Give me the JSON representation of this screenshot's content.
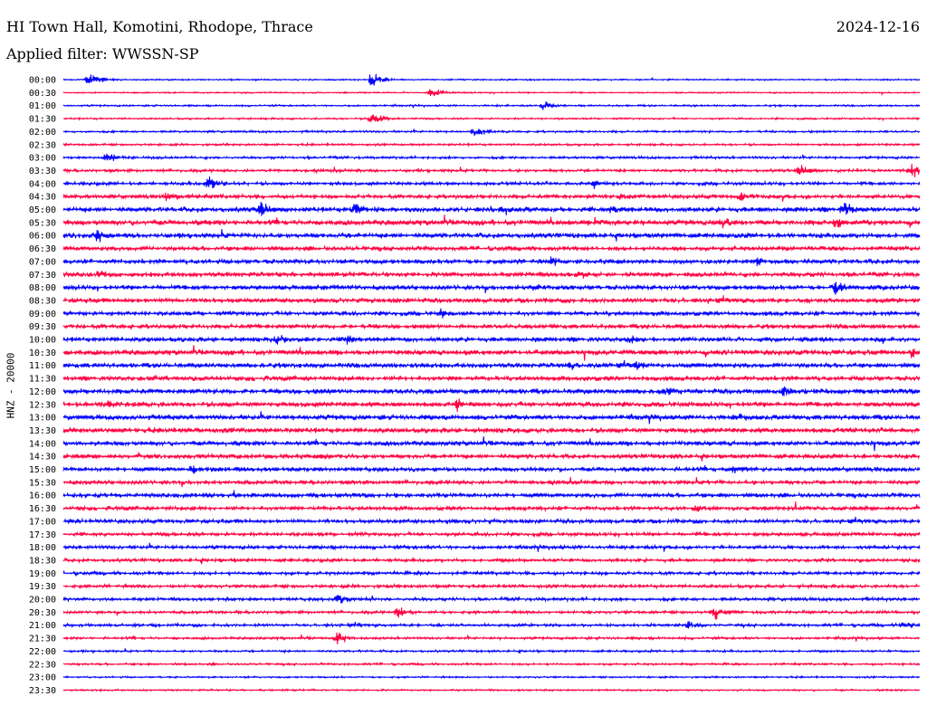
{
  "header": {
    "station": "HI Town Hall, Komotini, Rhodope, Thrace",
    "date": "2024-12-16",
    "filter": "Applied filter: WWSSN-SP"
  },
  "chart_data": {
    "type": "line",
    "title": "HI Town Hall, Komotini, Rhodope, Thrace",
    "ylabel": "HNZ - 20000",
    "xlabel": "",
    "row_labels": [
      "00:00",
      "00:30",
      "01:00",
      "01:30",
      "02:00",
      "02:30",
      "03:00",
      "03:30",
      "04:00",
      "04:30",
      "05:00",
      "05:30",
      "06:00",
      "06:30",
      "07:00",
      "07:30",
      "08:00",
      "08:30",
      "09:00",
      "09:30",
      "10:00",
      "10:30",
      "11:00",
      "11:30",
      "12:00",
      "12:30",
      "13:00",
      "13:30",
      "14:00",
      "14:30",
      "15:00",
      "15:30",
      "16:00",
      "16:30",
      "17:00",
      "17:30",
      "18:00",
      "18:30",
      "19:00",
      "19:30",
      "20:00",
      "20:30",
      "21:00",
      "21:30",
      "22:00",
      "22:30",
      "23:00",
      "23:30"
    ],
    "trace_colors": [
      "#0000ff",
      "#ff0040"
    ],
    "noise_level": [
      0.2,
      0.2,
      0.25,
      0.25,
      0.3,
      0.3,
      0.35,
      0.4,
      0.45,
      0.55,
      0.7,
      0.75,
      0.7,
      0.6,
      0.65,
      0.65,
      0.65,
      0.65,
      0.6,
      0.6,
      0.65,
      0.7,
      0.65,
      0.65,
      0.7,
      0.7,
      0.7,
      0.7,
      0.65,
      0.6,
      0.6,
      0.55,
      0.6,
      0.55,
      0.55,
      0.5,
      0.5,
      0.45,
      0.45,
      0.45,
      0.45,
      0.4,
      0.4,
      0.35,
      0.3,
      0.3,
      0.25,
      0.25
    ],
    "events": [
      {
        "row": 0,
        "pos": 0.03,
        "amp": 10
      },
      {
        "row": 0,
        "pos": 0.36,
        "amp": 9
      },
      {
        "row": 1,
        "pos": 0.43,
        "amp": 7
      },
      {
        "row": 2,
        "pos": 0.56,
        "amp": 6
      },
      {
        "row": 3,
        "pos": 0.36,
        "amp": 8
      },
      {
        "row": 4,
        "pos": 0.48,
        "amp": 8
      },
      {
        "row": 6,
        "pos": 0.05,
        "amp": 7
      },
      {
        "row": 7,
        "pos": 0.86,
        "amp": 8
      },
      {
        "row": 7,
        "pos": 0.99,
        "amp": 12
      },
      {
        "row": 8,
        "pos": 0.17,
        "amp": 10
      },
      {
        "row": 8,
        "pos": 0.62,
        "amp": 6
      },
      {
        "row": 9,
        "pos": 0.12,
        "amp": 6
      },
      {
        "row": 9,
        "pos": 0.65,
        "amp": 7
      },
      {
        "row": 9,
        "pos": 0.79,
        "amp": 7
      },
      {
        "row": 10,
        "pos": 0.23,
        "amp": 11
      },
      {
        "row": 10,
        "pos": 0.34,
        "amp": 9
      },
      {
        "row": 10,
        "pos": 0.64,
        "amp": 9
      },
      {
        "row": 10,
        "pos": 0.91,
        "amp": 12
      },
      {
        "row": 11,
        "pos": 0.62,
        "amp": 9
      },
      {
        "row": 11,
        "pos": 0.77,
        "amp": 9
      },
      {
        "row": 11,
        "pos": 0.9,
        "amp": 10
      },
      {
        "row": 12,
        "pos": 0.04,
        "amp": 9
      },
      {
        "row": 14,
        "pos": 0.57,
        "amp": 7
      },
      {
        "row": 14,
        "pos": 0.81,
        "amp": 7
      },
      {
        "row": 15,
        "pos": 0.04,
        "amp": 7
      },
      {
        "row": 15,
        "pos": 0.6,
        "amp": 6
      },
      {
        "row": 16,
        "pos": 0.9,
        "amp": 10
      },
      {
        "row": 16,
        "pos": 0.55,
        "amp": 6
      },
      {
        "row": 18,
        "pos": 0.44,
        "amp": 7
      },
      {
        "row": 20,
        "pos": 0.25,
        "amp": 9
      },
      {
        "row": 20,
        "pos": 0.33,
        "amp": 10
      },
      {
        "row": 20,
        "pos": 0.66,
        "amp": 7
      },
      {
        "row": 21,
        "pos": 0.99,
        "amp": 8
      },
      {
        "row": 22,
        "pos": 0.59,
        "amp": 7
      },
      {
        "row": 22,
        "pos": 0.67,
        "amp": 7
      },
      {
        "row": 24,
        "pos": 0.7,
        "amp": 8
      },
      {
        "row": 24,
        "pos": 0.84,
        "amp": 8
      },
      {
        "row": 25,
        "pos": 0.46,
        "amp": 9
      },
      {
        "row": 25,
        "pos": 0.05,
        "amp": 7
      },
      {
        "row": 26,
        "pos": 0.79,
        "amp": 6
      },
      {
        "row": 29,
        "pos": 0.3,
        "amp": 5
      },
      {
        "row": 30,
        "pos": 0.15,
        "amp": 7
      },
      {
        "row": 30,
        "pos": 0.78,
        "amp": 8
      },
      {
        "row": 33,
        "pos": 0.74,
        "amp": 7
      },
      {
        "row": 40,
        "pos": 0.32,
        "amp": 8
      },
      {
        "row": 41,
        "pos": 0.39,
        "amp": 9
      },
      {
        "row": 41,
        "pos": 0.76,
        "amp": 10
      },
      {
        "row": 42,
        "pos": 0.73,
        "amp": 6
      },
      {
        "row": 42,
        "pos": 0.98,
        "amp": 6
      },
      {
        "row": 43,
        "pos": 0.32,
        "amp": 10
      }
    ]
  }
}
